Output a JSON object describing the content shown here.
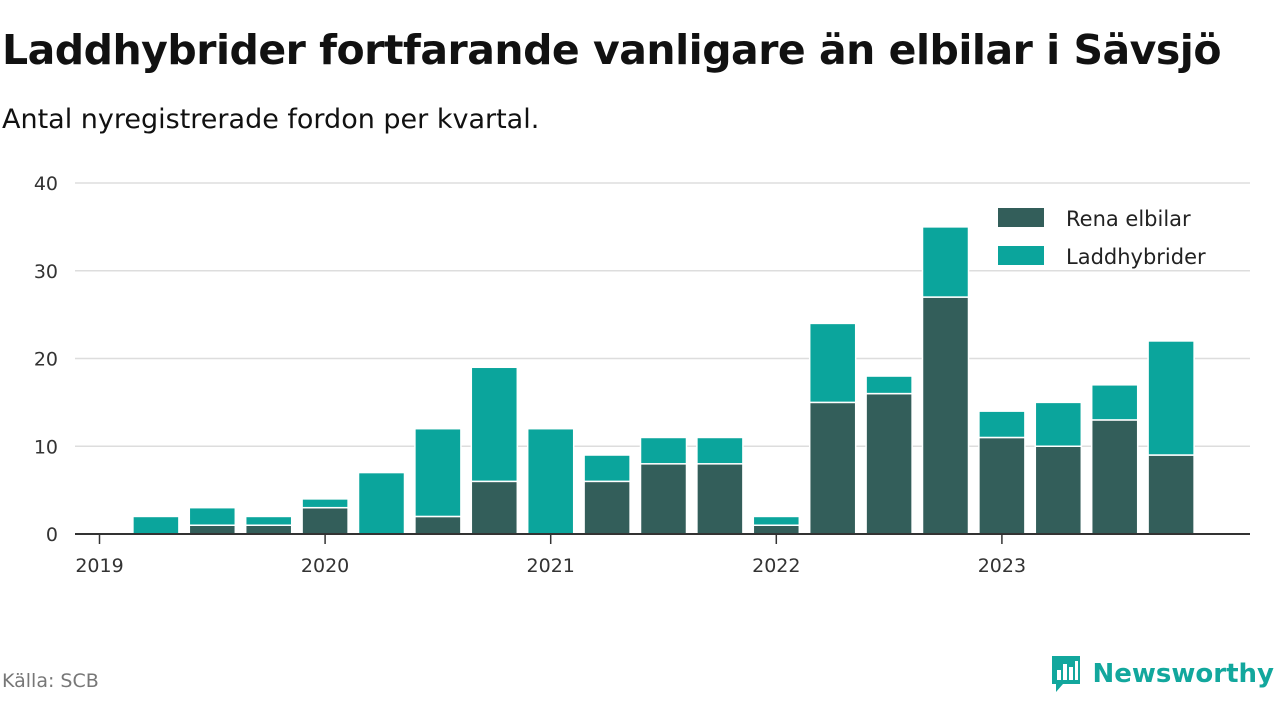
{
  "header": {
    "title": "Laddhybrider fortfarande vanligare än elbilar i Sävsjö",
    "subtitle": "Antal nyregistrerade fordon per kvartal."
  },
  "footer": {
    "source": "Källa: SCB",
    "brand": "Newsworthy"
  },
  "colors": {
    "rena_elbilar": "#335e5a",
    "laddhybrider": "#0ba59c",
    "brand": "#12a79d"
  },
  "icons": {
    "brand_logo": "newsworthy-logo-icon"
  },
  "chart_data": {
    "type": "bar",
    "stacked": true,
    "title": "Laddhybrider fortfarande vanligare än elbilar i Sävsjö",
    "subtitle": "Antal nyregistrerade fordon per kvartal.",
    "xlabel": "",
    "ylabel": "",
    "ylim": [
      0,
      40
    ],
    "yticks": [
      0,
      10,
      20,
      30,
      40
    ],
    "grid": true,
    "legend_position": "top-right",
    "x_tick_labels": [
      "2019",
      "2020",
      "2021",
      "2022",
      "2023"
    ],
    "categories": [
      "2019 Q1",
      "2019 Q2",
      "2019 Q3",
      "2019 Q4",
      "2020 Q1",
      "2020 Q2",
      "2020 Q3",
      "2020 Q4",
      "2021 Q1",
      "2021 Q2",
      "2021 Q3",
      "2021 Q4",
      "2022 Q1",
      "2022 Q2",
      "2022 Q3",
      "2022 Q4",
      "2023 Q1",
      "2023 Q2",
      "2023 Q3",
      "2023 Q4"
    ],
    "series": [
      {
        "name": "Rena elbilar",
        "values": [
          0,
          0,
          1,
          1,
          3,
          0,
          2,
          6,
          0,
          6,
          8,
          8,
          1,
          15,
          16,
          27,
          11,
          10,
          13,
          9
        ]
      },
      {
        "name": "Laddhybrider",
        "values": [
          0,
          2,
          2,
          1,
          1,
          7,
          10,
          13,
          12,
          3,
          3,
          3,
          1,
          9,
          2,
          8,
          3,
          5,
          4,
          13
        ]
      }
    ]
  }
}
